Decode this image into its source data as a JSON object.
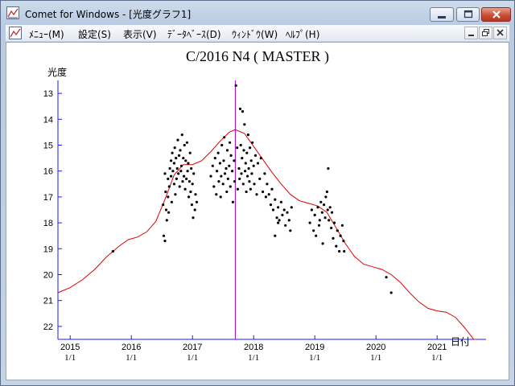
{
  "window": {
    "title": "Comet for Windows - [光度グラフ1]"
  },
  "menu": {
    "items": [
      {
        "label": "ﾒﾆｭｰ(M)"
      },
      {
        "label": "設定(S)"
      },
      {
        "label": "表示(V)"
      },
      {
        "label": "ﾃﾞｰﾀﾍﾞｰｽ(D)"
      },
      {
        "label": "ｳｨﾝﾄﾞｳ(W)"
      },
      {
        "label": "ﾍﾙﾌﾟ(H)"
      }
    ]
  },
  "icons": {
    "app": "chart-app-icon",
    "minimize": "minimize-icon",
    "maximize": "maximize-icon",
    "close": "close-icon",
    "restore": "restore-icon"
  },
  "colors": {
    "axis": "#1a1aff",
    "curve": "#e00000",
    "marker": "#a000c0",
    "points": "#000000"
  },
  "chart_data": {
    "type": "scatter",
    "title": "C/2016 N4 ( MASTER )",
    "ylabel": "光度",
    "xlabel": "日付",
    "y_inverted": true,
    "ylim": [
      22.5,
      12.5
    ],
    "xlim": [
      2014.8,
      2021.8
    ],
    "yticks": [
      13,
      14,
      15,
      16,
      17,
      18,
      19,
      20,
      21,
      22
    ],
    "xticks": [
      {
        "x": 2015,
        "year": "2015",
        "date": "1/1"
      },
      {
        "x": 2016,
        "year": "2016",
        "date": "1/1"
      },
      {
        "x": 2017,
        "year": "2017",
        "date": "1/1"
      },
      {
        "x": 2018,
        "year": "2018",
        "date": "1/1"
      },
      {
        "x": 2019,
        "year": "2019",
        "date": "1/1"
      },
      {
        "x": 2020,
        "year": "2020",
        "date": "1/1"
      },
      {
        "x": 2021,
        "year": "2021",
        "date": "1/1"
      }
    ],
    "marker_x": 2017.7,
    "curve": {
      "x": [
        2014.8,
        2015.0,
        2015.2,
        2015.4,
        2015.6,
        2015.8,
        2015.95,
        2016.1,
        2016.25,
        2016.4,
        2016.55,
        2016.7,
        2016.85,
        2017.0,
        2017.15,
        2017.3,
        2017.45,
        2017.6,
        2017.7,
        2017.85,
        2018.0,
        2018.15,
        2018.3,
        2018.45,
        2018.6,
        2018.75,
        2018.9,
        2019.05,
        2019.2,
        2019.35,
        2019.5,
        2019.65,
        2019.8,
        2019.95,
        2020.1,
        2020.25,
        2020.4,
        2020.55,
        2020.7,
        2020.85,
        2021.0,
        2021.15,
        2021.3,
        2021.45,
        2021.6,
        2021.65
      ],
      "y": [
        20.7,
        20.5,
        20.2,
        19.8,
        19.3,
        18.9,
        18.65,
        18.55,
        18.35,
        17.95,
        17.1,
        16.15,
        15.75,
        15.75,
        15.6,
        15.25,
        14.85,
        14.5,
        14.4,
        14.55,
        15.05,
        15.55,
        16.05,
        16.5,
        16.9,
        17.15,
        17.25,
        17.35,
        17.6,
        18.2,
        18.8,
        19.3,
        19.6,
        19.7,
        19.8,
        20.0,
        20.3,
        20.7,
        21.05,
        21.3,
        21.4,
        21.45,
        21.65,
        22.05,
        22.5,
        22.5
      ]
    },
    "scatter_points": [
      [
        2015.7,
        19.1
      ],
      [
        2016.52,
        17.3
      ],
      [
        2016.53,
        18.5
      ],
      [
        2016.55,
        18.7
      ],
      [
        2016.55,
        16.1
      ],
      [
        2016.56,
        16.8
      ],
      [
        2016.57,
        17.5
      ],
      [
        2016.58,
        17.9
      ],
      [
        2016.6,
        16.3
      ],
      [
        2016.6,
        17.0
      ],
      [
        2016.61,
        17.6
      ],
      [
        2016.62,
        16.6
      ],
      [
        2016.63,
        15.9
      ],
      [
        2016.65,
        16.2
      ],
      [
        2016.65,
        15.6
      ],
      [
        2016.66,
        17.2
      ],
      [
        2016.67,
        15.3
      ],
      [
        2016.68,
        16.0
      ],
      [
        2016.7,
        15.7
      ],
      [
        2016.7,
        16.5
      ],
      [
        2016.71,
        15.1
      ],
      [
        2016.72,
        16.9
      ],
      [
        2016.73,
        15.5
      ],
      [
        2016.74,
        16.3
      ],
      [
        2016.75,
        15.9
      ],
      [
        2016.76,
        14.8
      ],
      [
        2016.77,
        16.1
      ],
      [
        2016.78,
        15.4
      ],
      [
        2016.79,
        16.6
      ],
      [
        2016.8,
        15.2
      ],
      [
        2016.81,
        16.0
      ],
      [
        2016.82,
        15.8
      ],
      [
        2016.83,
        14.6
      ],
      [
        2016.84,
        16.4
      ],
      [
        2016.85,
        15.5
      ],
      [
        2016.86,
        16.2
      ],
      [
        2016.87,
        15.0
      ],
      [
        2016.88,
        16.7
      ],
      [
        2016.89,
        15.6
      ],
      [
        2016.9,
        16.3
      ],
      [
        2016.91,
        14.9
      ],
      [
        2016.92,
        16.0
      ],
      [
        2016.93,
        15.7
      ],
      [
        2016.94,
        17.0
      ],
      [
        2016.95,
        16.4
      ],
      [
        2016.96,
        15.3
      ],
      [
        2016.97,
        16.8
      ],
      [
        2016.98,
        15.9
      ],
      [
        2016.99,
        17.3
      ],
      [
        2017.0,
        16.5
      ],
      [
        2017.01,
        17.8
      ],
      [
        2017.02,
        16.1
      ],
      [
        2017.04,
        17.5
      ],
      [
        2017.05,
        16.9
      ],
      [
        2017.07,
        17.2
      ],
      [
        2017.3,
        16.2
      ],
      [
        2017.33,
        15.8
      ],
      [
        2017.35,
        16.6
      ],
      [
        2017.37,
        15.5
      ],
      [
        2017.39,
        16.9
      ],
      [
        2017.4,
        16.0
      ],
      [
        2017.42,
        15.3
      ],
      [
        2017.43,
        16.4
      ],
      [
        2017.45,
        15.7
      ],
      [
        2017.46,
        17.0
      ],
      [
        2017.47,
        16.2
      ],
      [
        2017.48,
        15.0
      ],
      [
        2017.5,
        16.5
      ],
      [
        2017.51,
        15.6
      ],
      [
        2017.52,
        14.7
      ],
      [
        2017.53,
        16.1
      ],
      [
        2017.55,
        15.9
      ],
      [
        2017.56,
        16.8
      ],
      [
        2017.57,
        15.2
      ],
      [
        2017.58,
        16.3
      ],
      [
        2017.6,
        15.8
      ],
      [
        2017.61,
        14.9
      ],
      [
        2017.62,
        16.6
      ],
      [
        2017.63,
        15.4
      ],
      [
        2017.65,
        16.0
      ],
      [
        2017.66,
        17.2
      ],
      [
        2017.68,
        15.6
      ],
      [
        2017.69,
        16.4
      ],
      [
        2017.71,
        12.7
      ],
      [
        2017.73,
        15.1
      ],
      [
        2017.74,
        16.7
      ],
      [
        2017.76,
        15.9
      ],
      [
        2017.77,
        16.3
      ],
      [
        2017.78,
        13.6
      ],
      [
        2017.79,
        15.0
      ],
      [
        2017.8,
        16.1
      ],
      [
        2017.81,
        15.5
      ],
      [
        2017.82,
        13.7
      ],
      [
        2017.83,
        16.5
      ],
      [
        2017.84,
        15.2
      ],
      [
        2017.85,
        14.2
      ],
      [
        2017.86,
        16.0
      ],
      [
        2017.87,
        15.7
      ],
      [
        2017.88,
        16.8
      ],
      [
        2017.89,
        15.3
      ],
      [
        2017.9,
        16.2
      ],
      [
        2017.91,
        14.6
      ],
      [
        2017.92,
        15.9
      ],
      [
        2017.93,
        16.4
      ],
      [
        2017.94,
        15.1
      ],
      [
        2017.95,
        16.7
      ],
      [
        2017.96,
        15.6
      ],
      [
        2017.97,
        16.1
      ],
      [
        2017.98,
        14.9
      ],
      [
        2018.0,
        15.8
      ],
      [
        2018.01,
        16.5
      ],
      [
        2018.03,
        15.4
      ],
      [
        2018.05,
        16.9
      ],
      [
        2018.07,
        15.7
      ],
      [
        2018.1,
        16.3
      ],
      [
        2018.12,
        15.5
      ],
      [
        2018.15,
        16.8
      ],
      [
        2018.18,
        16.1
      ],
      [
        2018.2,
        17.0
      ],
      [
        2018.22,
        16.5
      ],
      [
        2018.25,
        16.9
      ],
      [
        2018.28,
        17.3
      ],
      [
        2018.3,
        16.7
      ],
      [
        2018.32,
        17.5
      ],
      [
        2018.35,
        17.1
      ],
      [
        2018.38,
        17.8
      ],
      [
        2018.4,
        17.4
      ],
      [
        2018.42,
        17.9
      ],
      [
        2018.45,
        17.2
      ],
      [
        2018.47,
        17.7
      ],
      [
        2018.5,
        17.5
      ],
      [
        2018.52,
        18.1
      ],
      [
        2018.55,
        17.6
      ],
      [
        2018.58,
        17.9
      ],
      [
        2018.6,
        18.3
      ],
      [
        2018.62,
        17.4
      ],
      [
        2018.35,
        18.5
      ],
      [
        2018.4,
        18.0
      ],
      [
        2018.92,
        18.0
      ],
      [
        2018.95,
        17.5
      ],
      [
        2018.98,
        18.3
      ],
      [
        2019.0,
        17.7
      ],
      [
        2019.02,
        18.5
      ],
      [
        2019.05,
        17.4
      ],
      [
        2019.07,
        18.1
      ],
      [
        2019.08,
        17.9
      ],
      [
        2019.1,
        17.2
      ],
      [
        2019.12,
        17.6
      ],
      [
        2019.13,
        18.8
      ],
      [
        2019.15,
        17.3
      ],
      [
        2019.17,
        17.8
      ],
      [
        2019.18,
        17.0
      ],
      [
        2019.2,
        16.8
      ],
      [
        2019.21,
        17.5
      ],
      [
        2019.22,
        15.9
      ],
      [
        2019.23,
        17.9
      ],
      [
        2019.25,
        17.4
      ],
      [
        2019.27,
        18.2
      ],
      [
        2019.28,
        17.6
      ],
      [
        2019.3,
        18.6
      ],
      [
        2019.32,
        18.0
      ],
      [
        2019.35,
        18.9
      ],
      [
        2019.37,
        18.3
      ],
      [
        2019.4,
        19.1
      ],
      [
        2019.42,
        18.5
      ],
      [
        2019.45,
        18.1
      ],
      [
        2019.47,
        18.7
      ],
      [
        2019.48,
        19.1
      ],
      [
        2020.17,
        20.1
      ],
      [
        2020.25,
        20.7
      ]
    ]
  }
}
